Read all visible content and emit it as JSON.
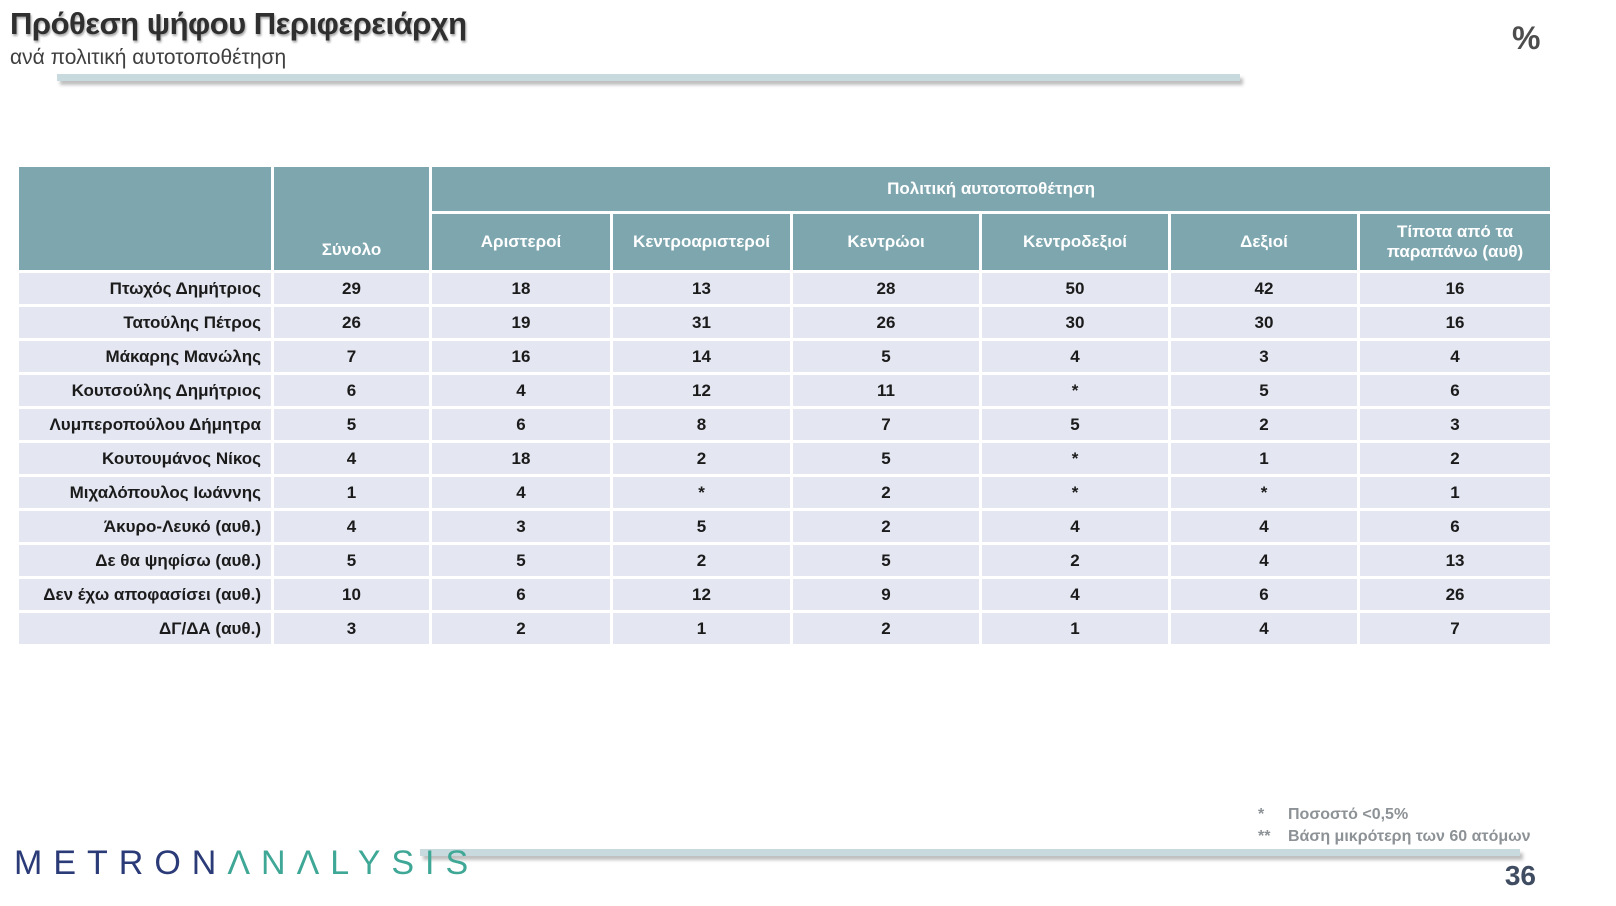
{
  "header": {
    "title": "Πρόθεση ψήφου Περιφερειάρχη",
    "subtitle": "ανά πολιτική αυτοτοποθέτηση",
    "unit_label": "%"
  },
  "chart_data": {
    "type": "table",
    "title": "Πρόθεση ψήφου Περιφερειάρχη ανά πολιτική αυτοτοποθέτηση (%)",
    "group_header": "Πολιτική αυτοτοποθέτηση",
    "columns": [
      "Σύνολο",
      "Αριστεροί",
      "Κεντροαριστεροί",
      "Κεντρώοι",
      "Κεντροδεξιοί",
      "Δεξιοί",
      "Τίποτα από τα παραπάνω (αυθ)"
    ],
    "rows": [
      {
        "label": "Πτωχός Δημήτριος",
        "values": [
          "29",
          "18",
          "13",
          "28",
          "50",
          "42",
          "16"
        ]
      },
      {
        "label": "Τατούλης Πέτρος",
        "values": [
          "26",
          "19",
          "31",
          "26",
          "30",
          "30",
          "16"
        ]
      },
      {
        "label": "Μάκαρης Μανώλης",
        "values": [
          "7",
          "16",
          "14",
          "5",
          "4",
          "3",
          "4"
        ]
      },
      {
        "label": "Κουτσούλης Δημήτριος",
        "values": [
          "6",
          "4",
          "12",
          "11",
          "*",
          "5",
          "6"
        ]
      },
      {
        "label": "Λυμπεροπούλου Δήμητρα",
        "values": [
          "5",
          "6",
          "8",
          "7",
          "5",
          "2",
          "3"
        ]
      },
      {
        "label": "Κουτουμάνος Νίκος",
        "values": [
          "4",
          "18",
          "2",
          "5",
          "*",
          "1",
          "2"
        ]
      },
      {
        "label": "Μιχαλόπουλος Ιωάννης",
        "values": [
          "1",
          "4",
          "*",
          "2",
          "*",
          "*",
          "1"
        ]
      },
      {
        "label": "Άκυρο-Λευκό (αυθ.)",
        "values": [
          "4",
          "3",
          "5",
          "2",
          "4",
          "4",
          "6"
        ]
      },
      {
        "label": "Δε θα ψηφίσω (αυθ.)",
        "values": [
          "5",
          "5",
          "2",
          "5",
          "2",
          "4",
          "13"
        ]
      },
      {
        "label": "Δεν έχω αποφασίσει (αυθ.)",
        "values": [
          "10",
          "6",
          "12",
          "9",
          "4",
          "6",
          "26"
        ]
      },
      {
        "label": "ΔΓ/ΔΑ (αυθ.)",
        "values": [
          "3",
          "2",
          "1",
          "2",
          "1",
          "4",
          "7"
        ]
      }
    ]
  },
  "footnotes": [
    {
      "marker": "*",
      "text": "Ποσοστό <0,5%"
    },
    {
      "marker": "**",
      "text": "Βάση μικρότερη των 60 ατόμων"
    }
  ],
  "footer": {
    "logo_primary": "METRON",
    "logo_secondary": "ΛNΛLYSIS",
    "page_number": "36"
  },
  "colors": {
    "header_teal": "#7ea6af",
    "row_background": "#e4e7f2",
    "accent_rule": "#c8dadd",
    "logo_navy": "#2b3b78",
    "logo_teal": "#3fa796",
    "footnote_grey": "#8d9296",
    "page_number_navy": "#3f4c61"
  }
}
